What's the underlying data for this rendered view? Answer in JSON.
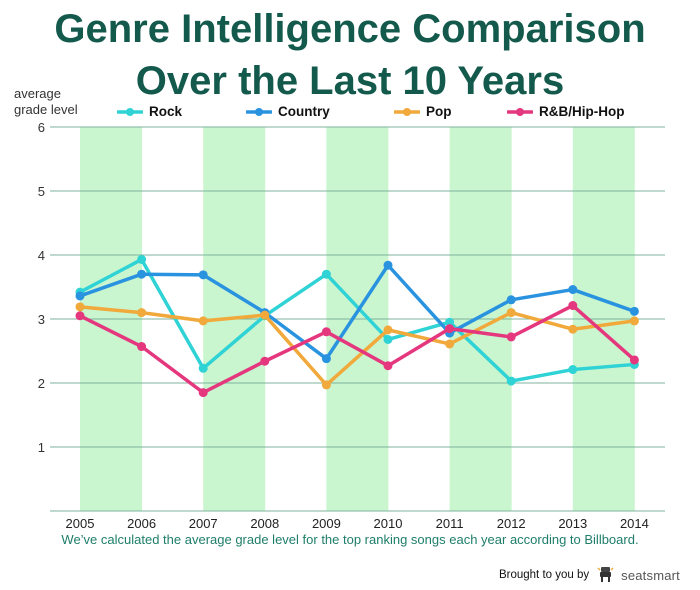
{
  "title_line1": "Genre Intelligence Comparison",
  "title_line2": "Over the Last 10 Years",
  "ylabel_line1": "average",
  "ylabel_line2": "grade level",
  "caption": "We’ve calculated the average grade level for the top ranking songs each year according to Billboard.",
  "brand": {
    "prefix": "Brought to you by",
    "name": "seatsmart"
  },
  "colors": {
    "title": "#145a4c",
    "band": "#c9f5cf",
    "grid": "#7fb39c",
    "caption": "#1e7e6a"
  },
  "chart_data": {
    "type": "line",
    "title": "Genre Intelligence Comparison Over the Last 10 Years",
    "ylabel": "average grade level",
    "xlabel": "",
    "ylim": [
      0,
      6
    ],
    "yticks": [
      1,
      2,
      3,
      4,
      5,
      6
    ],
    "grid": true,
    "legend_position": "top",
    "x": [
      "2005",
      "2006",
      "2007",
      "2008",
      "2009",
      "2010",
      "2011",
      "2012",
      "2013",
      "2014"
    ],
    "shaded_years": [
      "2005",
      "2007",
      "2009",
      "2011",
      "2013"
    ],
    "series": [
      {
        "name": "Rock",
        "color": "#2fd3d6",
        "values": [
          3.42,
          3.93,
          2.23,
          3.05,
          3.7,
          2.68,
          2.95,
          2.03,
          2.21,
          2.29
        ]
      },
      {
        "name": "Country",
        "color": "#2a93e0",
        "values": [
          3.36,
          3.7,
          3.69,
          3.1,
          2.38,
          3.84,
          2.78,
          3.3,
          3.46,
          3.12
        ]
      },
      {
        "name": "Pop",
        "color": "#f0a93a",
        "values": [
          3.19,
          3.1,
          2.97,
          3.06,
          1.97,
          2.83,
          2.61,
          3.1,
          2.84,
          2.97
        ]
      },
      {
        "name": "R&B/Hip-Hop",
        "color": "#e4377d",
        "values": [
          3.05,
          2.57,
          1.85,
          2.34,
          2.8,
          2.27,
          2.85,
          2.72,
          3.21,
          2.36
        ]
      }
    ]
  }
}
